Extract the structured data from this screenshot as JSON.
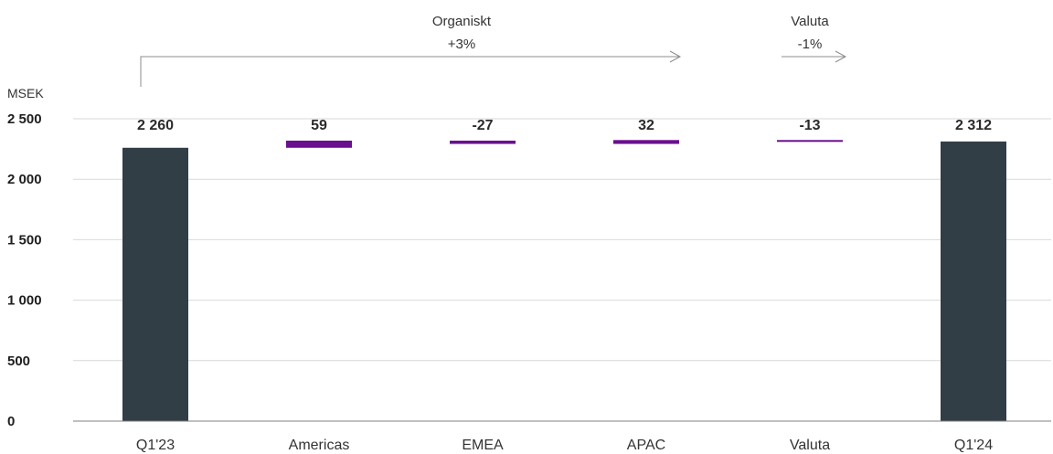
{
  "chart_data": {
    "type": "waterfall",
    "unit_label": "MSEK",
    "categories": [
      "Q1'23",
      "Americas",
      "EMEA",
      "APAC",
      "Valuta",
      "Q1'24"
    ],
    "values": [
      2260,
      59,
      -27,
      32,
      -13,
      2312
    ],
    "kinds": [
      "total",
      "delta",
      "delta",
      "delta",
      "delta",
      "total"
    ],
    "data_labels": [
      "2 260",
      "59",
      "-27",
      "32",
      "-13",
      "2 312"
    ],
    "ylim": [
      0,
      2500
    ],
    "yticks": [
      0,
      500,
      1000,
      1500,
      2000,
      2500
    ],
    "ytick_labels": [
      "0",
      "500",
      "1 000",
      "1 500",
      "2 000",
      "2 500"
    ],
    "grid": true,
    "colors": {
      "total": "#323e46",
      "delta": "#6a0f8e"
    },
    "annotations": {
      "organic": {
        "label": "Organiskt",
        "value": "+3%"
      },
      "currency": {
        "label": "Valuta",
        "value": "-1%"
      }
    }
  }
}
